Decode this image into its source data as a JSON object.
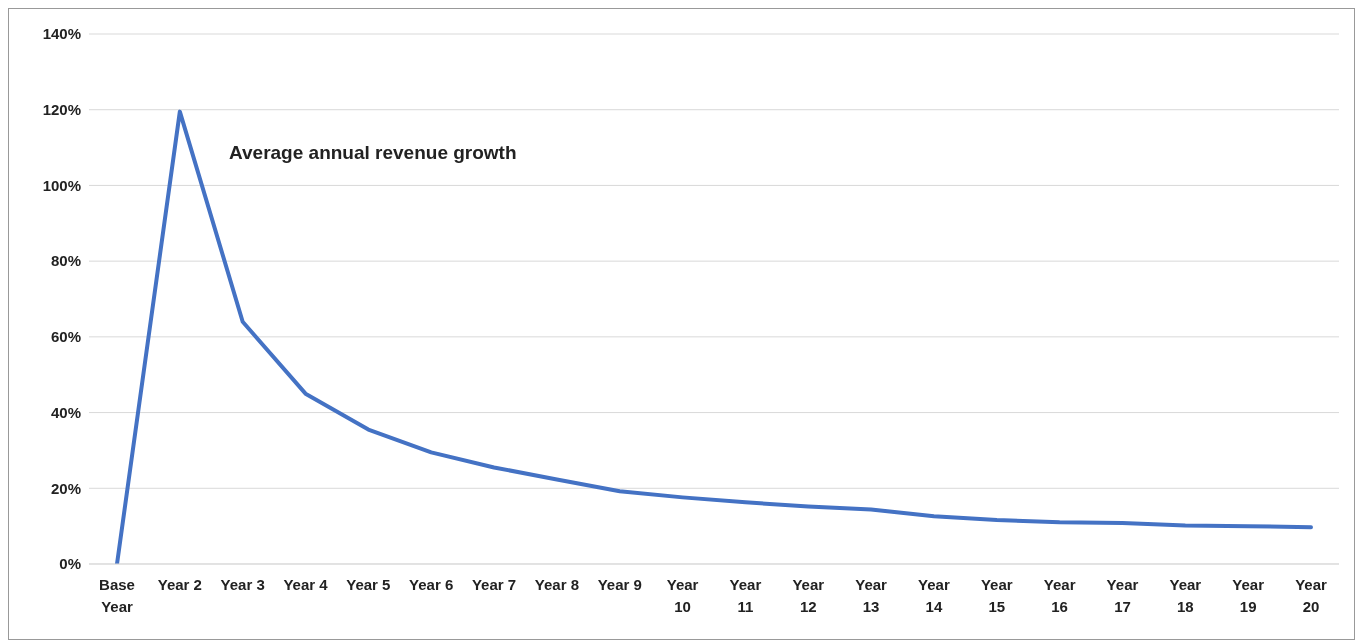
{
  "chart_data": {
    "type": "line",
    "categories": [
      "Base Year",
      "Year 2",
      "Year 3",
      "Year 4",
      "Year 5",
      "Year 6",
      "Year 7",
      "Year 8",
      "Year 9",
      "Year 10",
      "Year 11",
      "Year 12",
      "Year 13",
      "Year 14",
      "Year 15",
      "Year 16",
      "Year 17",
      "Year 18",
      "Year 19",
      "Year 20"
    ],
    "series": [
      {
        "color": "#4472c4",
        "values": [
          0,
          119.5,
          64,
          45,
          35.5,
          29.5,
          25.5,
          22.3,
          19.2,
          17.6,
          16.3,
          15.2,
          14.4,
          12.6,
          11.6,
          11,
          10.8,
          10.2,
          10,
          9.7
        ]
      }
    ],
    "annotations": [
      "Average annual revenue growth"
    ],
    "ylim": [
      0,
      140
    ],
    "yticks": [
      {
        "value": 0,
        "label": "0%"
      },
      {
        "value": 20,
        "label": "20%"
      },
      {
        "value": 40,
        "label": "40%"
      },
      {
        "value": 60,
        "label": "60%"
      },
      {
        "value": 80,
        "label": "80%"
      },
      {
        "value": 100,
        "label": "100%"
      },
      {
        "value": 120,
        "label": "120%"
      },
      {
        "value": 140,
        "label": "140%"
      }
    ],
    "grid": "y",
    "marker": "none",
    "line_style": "solid"
  }
}
